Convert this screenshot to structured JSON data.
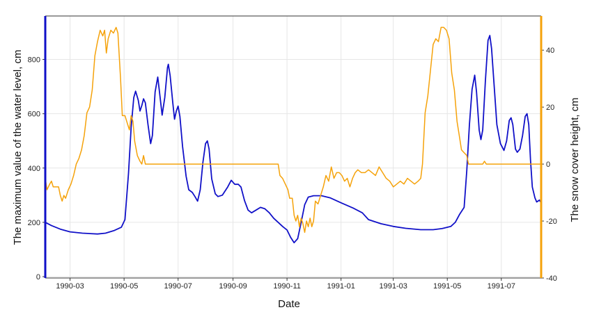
{
  "chart_data": {
    "type": "line",
    "xlabel": "Date",
    "ylabel_left": "The maximum value of the water level, cm",
    "ylabel_right": "The snow cover height, cm",
    "x_range": [
      "1990-02-01",
      "1991-08-15"
    ],
    "ylim_left": [
      -5,
      960
    ],
    "ylim_right": [
      -40,
      52
    ],
    "x_ticks": [
      "1990-03",
      "1990-05",
      "1990-07",
      "1990-09",
      "1990-11",
      "1991-01",
      "1991-03",
      "1991-05",
      "1991-07"
    ],
    "y_ticks_left": [
      0,
      200,
      400,
      600,
      800
    ],
    "y_ticks_right": [
      -40,
      -20,
      0,
      20,
      40
    ],
    "grid": true,
    "colors": {
      "water_level": "#1010c8",
      "snow_cover": "#f5a20a",
      "left_axis": "#1010c8",
      "right_axis": "#f5a20a"
    },
    "series": [
      {
        "axis": "left",
        "color": "#1010c8",
        "points": [
          [
            "1990-02-01",
            200
          ],
          [
            "1990-02-08",
            188
          ],
          [
            "1990-02-18",
            175
          ],
          [
            "1990-03-01",
            165
          ],
          [
            "1990-03-15",
            160
          ],
          [
            "1990-04-01",
            157
          ],
          [
            "1990-04-10",
            160
          ],
          [
            "1990-04-20",
            170
          ],
          [
            "1990-04-28",
            182
          ],
          [
            "1990-05-02",
            210
          ],
          [
            "1990-05-06",
            380
          ],
          [
            "1990-05-09",
            550
          ],
          [
            "1990-05-12",
            660
          ],
          [
            "1990-05-14",
            683
          ],
          [
            "1990-05-17",
            650
          ],
          [
            "1990-05-19",
            610
          ],
          [
            "1990-05-21",
            630
          ],
          [
            "1990-05-23",
            655
          ],
          [
            "1990-05-25",
            640
          ],
          [
            "1990-05-28",
            560
          ],
          [
            "1990-05-31",
            490
          ],
          [
            "1990-06-02",
            520
          ],
          [
            "1990-06-05",
            680
          ],
          [
            "1990-06-08",
            735
          ],
          [
            "1990-06-10",
            680
          ],
          [
            "1990-06-13",
            595
          ],
          [
            "1990-06-16",
            660
          ],
          [
            "1990-06-19",
            770
          ],
          [
            "1990-06-20",
            782
          ],
          [
            "1990-06-22",
            740
          ],
          [
            "1990-06-25",
            640
          ],
          [
            "1990-06-27",
            580
          ],
          [
            "1990-06-29",
            610
          ],
          [
            "1990-07-01",
            628
          ],
          [
            "1990-07-03",
            590
          ],
          [
            "1990-07-06",
            480
          ],
          [
            "1990-07-10",
            370
          ],
          [
            "1990-07-13",
            320
          ],
          [
            "1990-07-17",
            310
          ],
          [
            "1990-07-20",
            295
          ],
          [
            "1990-07-23",
            278
          ],
          [
            "1990-07-26",
            320
          ],
          [
            "1990-07-29",
            420
          ],
          [
            "1990-08-01",
            490
          ],
          [
            "1990-08-03",
            500
          ],
          [
            "1990-08-05",
            470
          ],
          [
            "1990-08-08",
            360
          ],
          [
            "1990-08-12",
            305
          ],
          [
            "1990-08-15",
            295
          ],
          [
            "1990-08-20",
            300
          ],
          [
            "1990-08-26",
            330
          ],
          [
            "1990-08-30",
            355
          ],
          [
            "1990-09-03",
            340
          ],
          [
            "1990-09-07",
            340
          ],
          [
            "1990-09-10",
            330
          ],
          [
            "1990-09-14",
            280
          ],
          [
            "1990-09-18",
            245
          ],
          [
            "1990-09-22",
            235
          ],
          [
            "1990-09-27",
            245
          ],
          [
            "1990-10-02",
            255
          ],
          [
            "1990-10-07",
            250
          ],
          [
            "1990-10-12",
            235
          ],
          [
            "1990-10-17",
            215
          ],
          [
            "1990-10-22",
            200
          ],
          [
            "1990-10-27",
            185
          ],
          [
            "1990-11-01",
            172
          ],
          [
            "1990-11-05",
            145
          ],
          [
            "1990-11-09",
            125
          ],
          [
            "1990-11-13",
            140
          ],
          [
            "1990-11-17",
            200
          ],
          [
            "1990-11-21",
            265
          ],
          [
            "1990-11-25",
            293
          ],
          [
            "1990-12-01",
            298
          ],
          [
            "1990-12-10",
            298
          ],
          [
            "1990-12-20",
            290
          ],
          [
            "1991-01-01",
            272
          ],
          [
            "1991-01-15",
            252
          ],
          [
            "1991-01-25",
            235
          ],
          [
            "1991-02-01",
            210
          ],
          [
            "1991-02-15",
            195
          ],
          [
            "1991-03-01",
            185
          ],
          [
            "1991-03-15",
            178
          ],
          [
            "1991-04-01",
            173
          ],
          [
            "1991-04-15",
            173
          ],
          [
            "1991-04-25",
            177
          ],
          [
            "1991-05-05",
            185
          ],
          [
            "1991-05-10",
            200
          ],
          [
            "1991-05-15",
            230
          ],
          [
            "1991-05-20",
            255
          ],
          [
            "1991-05-23",
            390
          ],
          [
            "1991-05-26",
            560
          ],
          [
            "1991-05-29",
            690
          ],
          [
            "1991-06-01",
            742
          ],
          [
            "1991-06-03",
            680
          ],
          [
            "1991-06-06",
            540
          ],
          [
            "1991-06-08",
            505
          ],
          [
            "1991-06-10",
            540
          ],
          [
            "1991-06-13",
            720
          ],
          [
            "1991-06-16",
            870
          ],
          [
            "1991-06-18",
            888
          ],
          [
            "1991-06-20",
            840
          ],
          [
            "1991-06-23",
            700
          ],
          [
            "1991-06-26",
            560
          ],
          [
            "1991-06-30",
            490
          ],
          [
            "1991-07-04",
            465
          ],
          [
            "1991-07-07",
            500
          ],
          [
            "1991-07-10",
            575
          ],
          [
            "1991-07-12",
            585
          ],
          [
            "1991-07-14",
            560
          ],
          [
            "1991-07-17",
            470
          ],
          [
            "1991-07-19",
            458
          ],
          [
            "1991-07-22",
            470
          ],
          [
            "1991-07-25",
            520
          ],
          [
            "1991-07-28",
            590
          ],
          [
            "1991-07-30",
            600
          ],
          [
            "1991-08-01",
            560
          ],
          [
            "1991-08-03",
            430
          ],
          [
            "1991-08-05",
            330
          ],
          [
            "1991-08-08",
            290
          ],
          [
            "1991-08-10",
            275
          ],
          [
            "1991-08-13",
            282
          ],
          [
            "1991-08-15",
            272
          ]
        ]
      },
      {
        "axis": "right",
        "color": "#f5a20a",
        "points": [
          [
            "1990-02-01",
            -5
          ],
          [
            "1990-02-03",
            -9
          ],
          [
            "1990-02-06",
            -7
          ],
          [
            "1990-02-08",
            -6
          ],
          [
            "1990-02-10",
            -8
          ],
          [
            "1990-02-13",
            -8
          ],
          [
            "1990-02-16",
            -8
          ],
          [
            "1990-02-18",
            -11
          ],
          [
            "1990-02-20",
            -13
          ],
          [
            "1990-02-22",
            -11
          ],
          [
            "1990-02-24",
            -12
          ],
          [
            "1990-02-27",
            -9
          ],
          [
            "1990-03-02",
            -7
          ],
          [
            "1990-03-05",
            -4
          ],
          [
            "1990-03-08",
            0
          ],
          [
            "1990-03-11",
            2
          ],
          [
            "1990-03-14",
            5
          ],
          [
            "1990-03-17",
            10
          ],
          [
            "1990-03-20",
            18
          ],
          [
            "1990-03-23",
            20
          ],
          [
            "1990-03-26",
            26
          ],
          [
            "1990-03-29",
            38
          ],
          [
            "1990-04-01",
            43
          ],
          [
            "1990-04-04",
            47
          ],
          [
            "1990-04-07",
            45
          ],
          [
            "1990-04-09",
            47
          ],
          [
            "1990-04-11",
            39
          ],
          [
            "1990-04-13",
            44
          ],
          [
            "1990-04-16",
            47
          ],
          [
            "1990-04-19",
            46
          ],
          [
            "1990-04-22",
            48
          ],
          [
            "1990-04-24",
            46
          ],
          [
            "1990-04-27",
            30
          ],
          [
            "1990-04-29",
            17
          ],
          [
            "1990-05-02",
            17
          ],
          [
            "1990-05-05",
            14
          ],
          [
            "1990-05-07",
            12
          ],
          [
            "1990-05-09",
            17
          ],
          [
            "1990-05-11",
            15
          ],
          [
            "1990-05-13",
            8
          ],
          [
            "1990-05-16",
            3
          ],
          [
            "1990-05-19",
            1
          ],
          [
            "1990-05-21",
            0
          ],
          [
            "1990-05-23",
            3
          ],
          [
            "1990-05-25",
            0
          ],
          [
            "1990-06-15",
            0
          ],
          [
            "1990-07-15",
            0
          ],
          [
            "1990-08-15",
            0
          ],
          [
            "1990-09-15",
            0
          ],
          [
            "1990-10-15",
            0
          ],
          [
            "1990-10-22",
            0
          ],
          [
            "1990-10-24",
            -4
          ],
          [
            "1990-10-27",
            -5
          ],
          [
            "1990-10-30",
            -7
          ],
          [
            "1990-11-02",
            -9
          ],
          [
            "1990-11-04",
            -12
          ],
          [
            "1990-11-07",
            -12
          ],
          [
            "1990-11-09",
            -18
          ],
          [
            "1990-11-11",
            -20
          ],
          [
            "1990-11-13",
            -18
          ],
          [
            "1990-11-15",
            -22
          ],
          [
            "1990-11-17",
            -19
          ],
          [
            "1990-11-19",
            -21
          ],
          [
            "1990-11-21",
            -24
          ],
          [
            "1990-11-23",
            -20
          ],
          [
            "1990-11-25",
            -22
          ],
          [
            "1990-11-27",
            -19
          ],
          [
            "1990-11-29",
            -22
          ],
          [
            "1990-12-01",
            -20
          ],
          [
            "1990-12-03",
            -13
          ],
          [
            "1990-12-06",
            -14
          ],
          [
            "1990-12-09",
            -11
          ],
          [
            "1990-12-12",
            -8
          ],
          [
            "1990-12-15",
            -4
          ],
          [
            "1990-12-18",
            -6
          ],
          [
            "1990-12-21",
            -1
          ],
          [
            "1990-12-24",
            -5
          ],
          [
            "1990-12-27",
            -3
          ],
          [
            "1990-12-30",
            -3
          ],
          [
            "1991-01-02",
            -4
          ],
          [
            "1991-01-05",
            -6
          ],
          [
            "1991-01-08",
            -5
          ],
          [
            "1991-01-11",
            -8
          ],
          [
            "1991-01-14",
            -5
          ],
          [
            "1991-01-17",
            -3
          ],
          [
            "1991-01-20",
            -2
          ],
          [
            "1991-01-24",
            -3
          ],
          [
            "1991-01-28",
            -3
          ],
          [
            "1991-02-01",
            -2
          ],
          [
            "1991-02-05",
            -3
          ],
          [
            "1991-02-09",
            -4
          ],
          [
            "1991-02-13",
            -1
          ],
          [
            "1991-02-17",
            -3
          ],
          [
            "1991-02-21",
            -5
          ],
          [
            "1991-02-25",
            -6
          ],
          [
            "1991-03-01",
            -8
          ],
          [
            "1991-03-05",
            -7
          ],
          [
            "1991-03-09",
            -6
          ],
          [
            "1991-03-13",
            -7
          ],
          [
            "1991-03-17",
            -5
          ],
          [
            "1991-03-21",
            -6
          ],
          [
            "1991-03-25",
            -7
          ],
          [
            "1991-03-29",
            -6
          ],
          [
            "1991-04-01",
            -5
          ],
          [
            "1991-04-03",
            0
          ],
          [
            "1991-04-06",
            18
          ],
          [
            "1991-04-09",
            24
          ],
          [
            "1991-04-12",
            33
          ],
          [
            "1991-04-15",
            42
          ],
          [
            "1991-04-18",
            44
          ],
          [
            "1991-04-21",
            43
          ],
          [
            "1991-04-24",
            48
          ],
          [
            "1991-04-27",
            48
          ],
          [
            "1991-04-30",
            47
          ],
          [
            "1991-05-03",
            44
          ],
          [
            "1991-05-06",
            32
          ],
          [
            "1991-05-09",
            26
          ],
          [
            "1991-05-12",
            15
          ],
          [
            "1991-05-14",
            11
          ],
          [
            "1991-05-17",
            5
          ],
          [
            "1991-05-20",
            4
          ],
          [
            "1991-05-23",
            3
          ],
          [
            "1991-05-25",
            0
          ],
          [
            "1991-06-10",
            0
          ],
          [
            "1991-06-12",
            1
          ],
          [
            "1991-06-14",
            0
          ],
          [
            "1991-07-01",
            0
          ],
          [
            "1991-08-01",
            0
          ],
          [
            "1991-08-15",
            0
          ]
        ]
      }
    ]
  }
}
